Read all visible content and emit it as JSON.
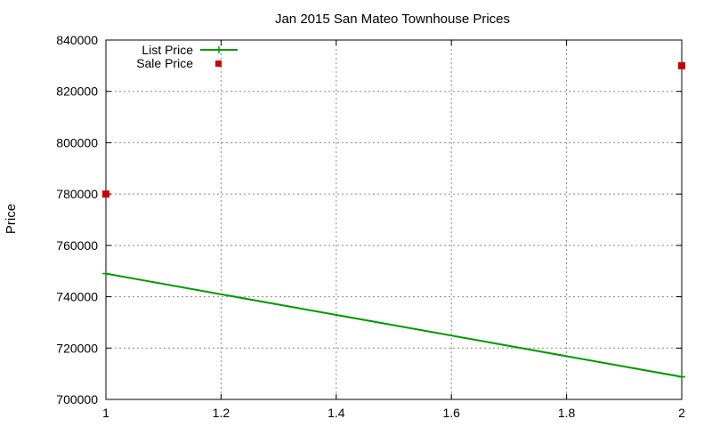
{
  "chart_data": {
    "type": "line",
    "title": "Jan 2015 San Mateo Townhouse Prices",
    "xlabel": "",
    "ylabel": "Price",
    "xlim": [
      1,
      2
    ],
    "ylim": [
      700000,
      840000
    ],
    "x_ticks": [
      "1",
      "1.2",
      "1.4",
      "1.6",
      "1.8",
      "2"
    ],
    "y_ticks": [
      "700000",
      "720000",
      "740000",
      "760000",
      "780000",
      "800000",
      "820000",
      "840000"
    ],
    "grid": true,
    "legend_position": "top-left",
    "series": [
      {
        "name": "List Price",
        "style": "line",
        "color": "#009900",
        "points": [
          {
            "x": 1,
            "y": 749000
          },
          {
            "x": 2,
            "y": 708800
          }
        ]
      },
      {
        "name": "Sale Price",
        "style": "points",
        "color": "#cc0000",
        "points": [
          {
            "x": 1,
            "y": 780000
          },
          {
            "x": 2,
            "y": 830000
          }
        ]
      }
    ]
  }
}
